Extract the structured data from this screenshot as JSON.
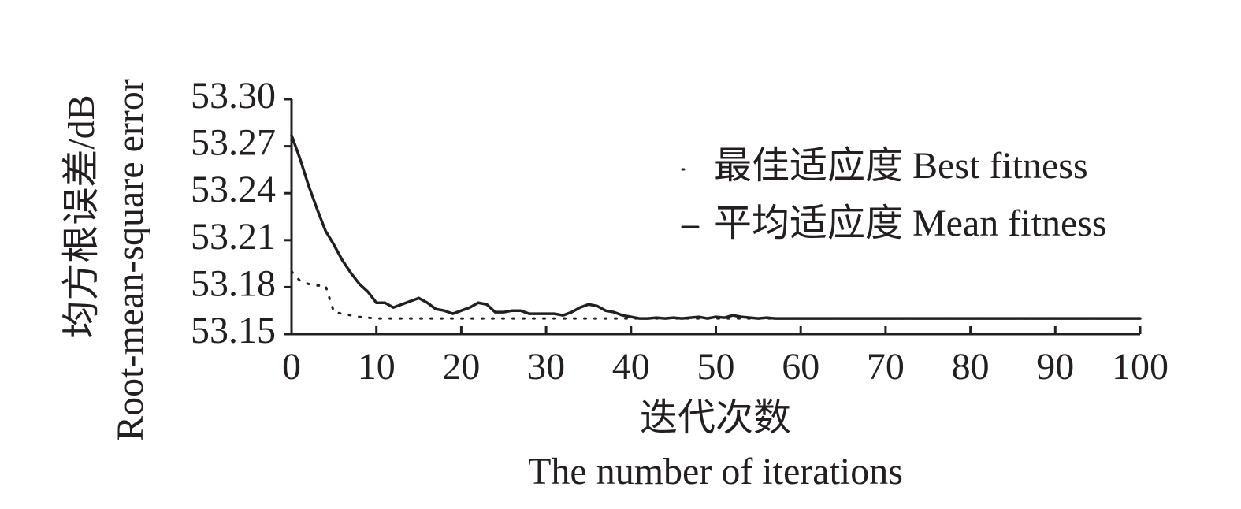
{
  "chart_data": {
    "type": "line",
    "xlabel": [
      "迭代次数",
      "The number of iterations"
    ],
    "ylabel": [
      "均方根误差/dB",
      "Root-mean-square error"
    ],
    "x": [
      0,
      1,
      2,
      3,
      4,
      5,
      6,
      7,
      8,
      9,
      10,
      11,
      12,
      13,
      14,
      15,
      16,
      17,
      18,
      19,
      20,
      21,
      22,
      23,
      24,
      25,
      26,
      27,
      28,
      29,
      30,
      31,
      32,
      33,
      34,
      35,
      36,
      37,
      38,
      39,
      40,
      41,
      42,
      43,
      44,
      45,
      46,
      47,
      48,
      49,
      50,
      51,
      52,
      53,
      54,
      55,
      56,
      57,
      58,
      59,
      60,
      61,
      62,
      63,
      64,
      65,
      66,
      67,
      68,
      69,
      70,
      71,
      72,
      73,
      74,
      75,
      76,
      77,
      78,
      79,
      80,
      81,
      82,
      83,
      84,
      85,
      86,
      87,
      88,
      89,
      90,
      91,
      92,
      93,
      94,
      95,
      96,
      97,
      98,
      99,
      100
    ],
    "series": [
      {
        "name": "最佳适应度 Best fitness",
        "color": "#231f20",
        "style": "dotted",
        "values": [
          53.19,
          53.184,
          53.182,
          53.181,
          53.181,
          53.164,
          53.163,
          53.162,
          53.161,
          53.1605,
          53.16,
          53.16,
          53.16,
          53.16,
          53.16,
          53.16,
          53.16,
          53.16,
          53.16,
          53.16,
          53.16,
          53.16,
          53.16,
          53.16,
          53.16,
          53.16,
          53.16,
          53.16,
          53.16,
          53.16,
          53.16,
          53.16,
          53.16,
          53.16,
          53.16,
          53.16,
          53.16,
          53.16,
          53.16,
          53.16,
          53.16,
          53.16,
          53.16,
          53.16,
          53.16,
          53.16,
          53.16,
          53.16,
          53.16,
          53.16,
          53.16,
          53.16,
          53.16,
          53.16,
          53.16,
          53.16,
          53.16,
          53.16,
          53.16,
          53.16,
          53.16,
          53.16,
          53.16,
          53.16,
          53.16,
          53.16,
          53.16,
          53.16,
          53.16,
          53.16,
          53.16,
          53.16,
          53.16,
          53.16,
          53.16,
          53.16,
          53.16,
          53.16,
          53.16,
          53.16,
          53.16,
          53.16,
          53.16,
          53.16,
          53.16,
          53.16,
          53.16,
          53.16,
          53.16,
          53.16,
          53.16,
          53.16,
          53.16,
          53.16,
          53.16,
          53.16,
          53.16,
          53.16,
          53.16,
          53.16,
          53.16
        ]
      },
      {
        "name": "平均适应度 Mean fitness",
        "color": "#231f20",
        "style": "solid",
        "values": [
          53.277,
          53.262,
          53.245,
          53.23,
          53.216,
          53.207,
          53.197,
          53.189,
          53.182,
          53.177,
          53.17,
          53.17,
          53.167,
          53.169,
          53.171,
          53.173,
          53.17,
          53.166,
          53.165,
          53.163,
          53.165,
          53.167,
          53.17,
          53.169,
          53.164,
          53.164,
          53.165,
          53.165,
          53.163,
          53.163,
          53.163,
          53.163,
          53.162,
          53.164,
          53.167,
          53.169,
          53.168,
          53.165,
          53.164,
          53.162,
          53.161,
          53.16,
          53.16,
          53.1605,
          53.16,
          53.1605,
          53.16,
          53.1605,
          53.161,
          53.16,
          53.161,
          53.1605,
          53.162,
          53.161,
          53.1605,
          53.16,
          53.1605,
          53.16,
          53.16,
          53.16,
          53.16,
          53.16,
          53.16,
          53.16,
          53.16,
          53.16,
          53.16,
          53.16,
          53.16,
          53.16,
          53.16,
          53.16,
          53.16,
          53.16,
          53.16,
          53.16,
          53.16,
          53.16,
          53.16,
          53.16,
          53.16,
          53.16,
          53.16,
          53.16,
          53.16,
          53.16,
          53.16,
          53.16,
          53.16,
          53.16,
          53.16,
          53.16,
          53.16,
          53.16,
          53.16,
          53.16,
          53.16,
          53.16,
          53.16,
          53.16,
          53.16
        ]
      }
    ],
    "xlim": [
      0,
      100
    ],
    "xticks": [
      0,
      10,
      20,
      30,
      40,
      50,
      60,
      70,
      80,
      90,
      100
    ],
    "ylim": [
      53.15,
      53.3
    ],
    "yticks": [
      53.15,
      53.18,
      53.21,
      53.24,
      53.27,
      {
        "value": 53.3,
        "label": "53.30"
      }
    ],
    "legend": "upper right"
  }
}
